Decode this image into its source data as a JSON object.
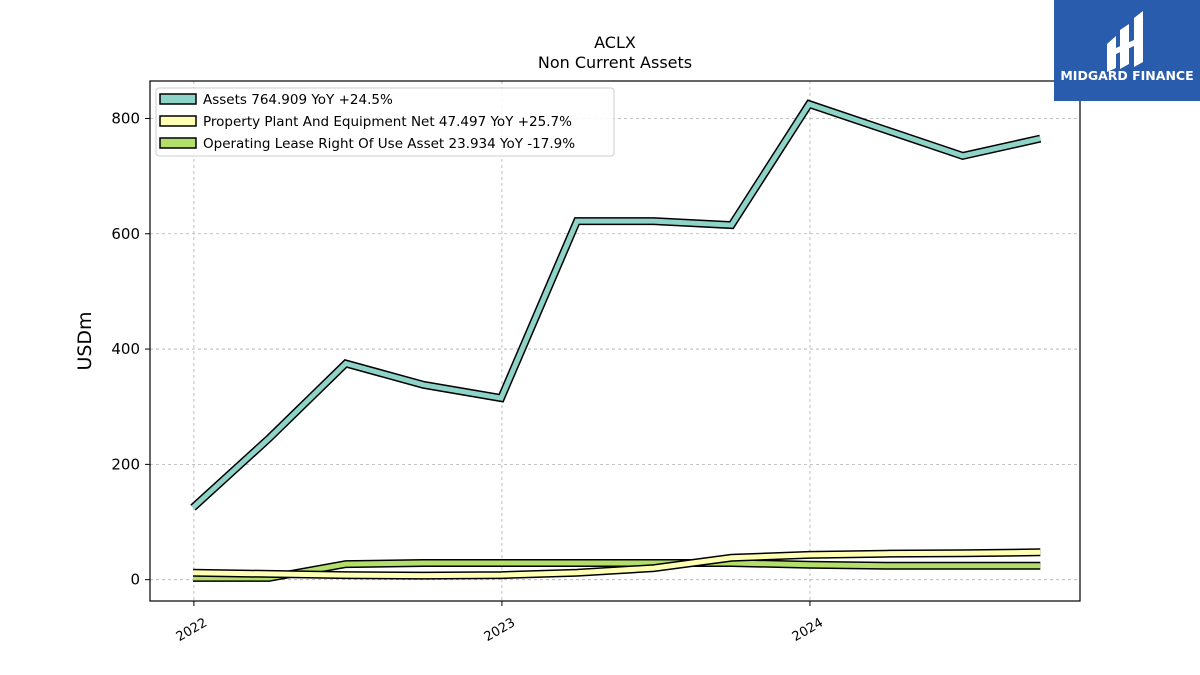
{
  "chart_data": {
    "type": "line",
    "title": "ACLX",
    "subtitle": "Non Current  Assets",
    "ylabel": "USDm",
    "ylim": [
      -37,
      865
    ],
    "yticks": [
      0,
      200,
      400,
      600,
      800
    ],
    "xlim": [
      "2021-11-10",
      "2024-11-16"
    ],
    "xticks": [
      {
        "date": "2022-01-01",
        "label": "2022"
      },
      {
        "date": "2023-01-01",
        "label": "2023"
      },
      {
        "date": "2024-01-01",
        "label": "2024"
      }
    ],
    "grid": true,
    "legend_position": "top-left",
    "x": [
      "2021-12-31",
      "2022-03-31",
      "2022-06-30",
      "2022-09-30",
      "2022-12-31",
      "2023-03-31",
      "2023-06-30",
      "2023-09-30",
      "2023-12-31",
      "2024-03-31",
      "2024-06-30",
      "2024-09-30"
    ],
    "series": [
      {
        "name": "Assets",
        "legend": "Assets  764.909 YoY +24.5%",
        "color": "#8dd3c7",
        "values": [
          125,
          245,
          375,
          338,
          315,
          622,
          622,
          615,
          825,
          780,
          735,
          765
        ]
      },
      {
        "name": "Property Plant And Equipment Net",
        "legend": "Property Plant And Equipment Net  47.497 YoY +25.7%",
        "color": "#ffffb3",
        "values": [
          12,
          10,
          8,
          7,
          8,
          12,
          20,
          38,
          43,
          45,
          46,
          47.5
        ]
      },
      {
        "name": "Operating Lease Right Of Use Asset",
        "legend": "Operating Lease Right Of Use Asset  23.934 YoY -17.9%",
        "color": "#b3de69",
        "values": [
          3,
          3,
          27,
          29,
          29,
          29,
          29,
          29,
          26,
          24,
          24,
          24
        ]
      }
    ]
  },
  "brand": {
    "name": "MIDGARD FINANCE",
    "background": "#2a5cad"
  }
}
